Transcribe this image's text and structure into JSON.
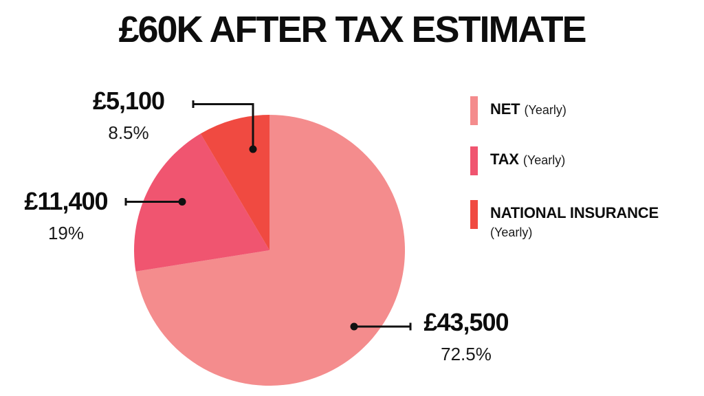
{
  "page": {
    "background": "#ffffff"
  },
  "chart_data": {
    "type": "pie",
    "title": "£60K AFTER TAX ESTIMATE",
    "start_angle_deg": 0,
    "direction": "clockwise",
    "legend_position": "right",
    "slice_order_clockwise_from_top": [
      "NET",
      "TAX",
      "NATIONAL INSURANCE"
    ],
    "series": [
      {
        "name": "NET",
        "period": "(Yearly)",
        "amount": "£43,500",
        "percent_label": "72.5%",
        "value": 43500,
        "percent": 72.5,
        "color": "#F48C8D"
      },
      {
        "name": "TAX",
        "period": "(Yearly)",
        "amount": "£11,400",
        "percent_label": "19%",
        "value": 11400,
        "percent": 19,
        "color": "#F05570"
      },
      {
        "name": "NATIONAL INSURANCE",
        "period": "(Yearly)",
        "amount": "£5,100",
        "percent_label": "8.5%",
        "value": 5100,
        "percent": 8.5,
        "color": "#F04A41"
      }
    ],
    "connector_color": "#111111"
  }
}
